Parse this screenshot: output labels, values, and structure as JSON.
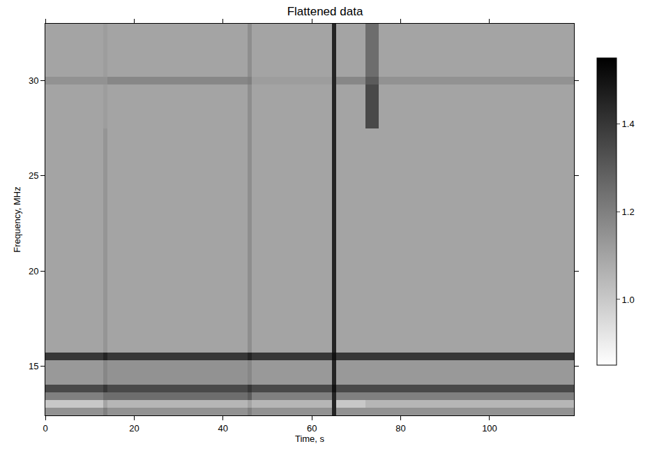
{
  "chart_data": {
    "type": "heatmap",
    "title": "Flattened data",
    "x_label": "Time, s",
    "y_label": "Frequency, MHz",
    "x_edges": [
      0,
      13,
      14,
      45.5,
      46.5,
      64.5,
      65.5,
      72,
      75,
      119
    ],
    "y_edges": [
      12.4,
      12.8,
      13.2,
      13.6,
      14.0,
      15.3,
      15.7,
      27.5,
      29.8,
      30.2,
      33
    ],
    "z": [
      [
        1.15,
        1.2,
        1.15,
        1.2,
        1.15,
        1.45,
        1.15,
        1.15,
        1.15
      ],
      [
        1.0,
        1.1,
        1.05,
        1.1,
        1.05,
        1.45,
        1.0,
        1.05,
        1.05
      ],
      [
        1.2,
        1.25,
        1.25,
        1.3,
        1.2,
        1.45,
        1.2,
        1.2,
        1.2
      ],
      [
        1.35,
        1.4,
        1.35,
        1.4,
        1.35,
        1.5,
        1.35,
        1.35,
        1.35
      ],
      [
        1.13,
        1.18,
        1.15,
        1.18,
        1.13,
        1.45,
        1.13,
        1.13,
        1.13
      ],
      [
        1.4,
        1.45,
        1.4,
        1.45,
        1.4,
        1.5,
        1.4,
        1.4,
        1.4
      ],
      [
        1.1,
        1.14,
        1.1,
        1.16,
        1.1,
        1.45,
        1.1,
        1.1,
        1.1
      ],
      [
        1.1,
        1.12,
        1.1,
        1.16,
        1.1,
        1.45,
        1.1,
        1.35,
        1.1
      ],
      [
        1.15,
        1.15,
        1.18,
        1.2,
        1.12,
        1.45,
        1.18,
        1.3,
        1.15
      ],
      [
        1.1,
        1.12,
        1.1,
        1.16,
        1.1,
        1.45,
        1.1,
        1.25,
        1.1
      ]
    ],
    "xlim": [
      0,
      119
    ],
    "xticks": [
      0,
      20,
      40,
      60,
      80,
      100
    ],
    "ylim": [
      12.4,
      33
    ],
    "yticks": [
      15,
      20,
      25,
      30
    ],
    "zlim": [
      0.85,
      1.55
    ],
    "zticks": [
      {
        "value": 1,
        "label": "1.0"
      },
      {
        "value": 1.2,
        "label": "1.2"
      },
      {
        "value": 1.4,
        "label": "1.4"
      }
    ],
    "grid": false
  }
}
